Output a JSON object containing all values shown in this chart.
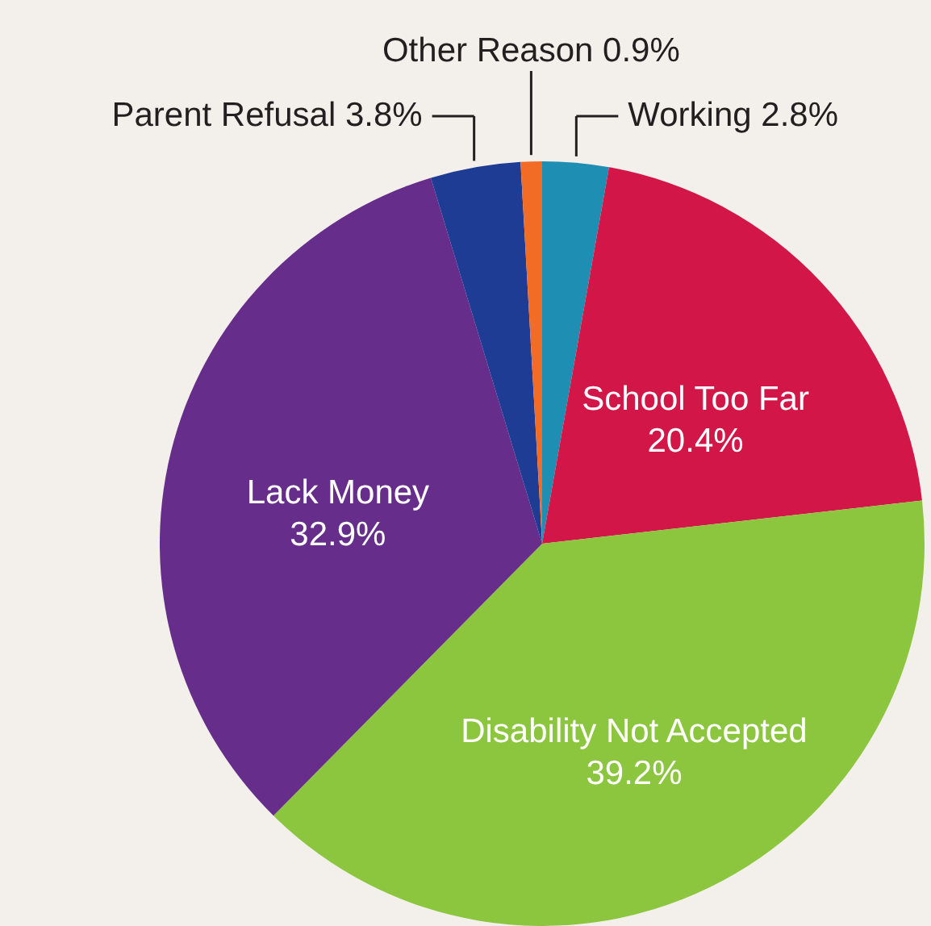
{
  "chart_data": {
    "type": "pie",
    "categories": [
      "Working",
      "School Too Far",
      "Disability Not Accepted",
      "Lack Money",
      "Parent Refusal",
      "Other Reason"
    ],
    "values": [
      2.8,
      20.4,
      39.2,
      32.9,
      3.8,
      0.9
    ],
    "value_labels": [
      "2.8%",
      "20.4%",
      "39.2%",
      "32.9%",
      "3.8%",
      "0.9%"
    ],
    "colors": [
      "#1f8eb3",
      "#d31648",
      "#8cc63f",
      "#662d8a",
      "#1f3c94",
      "#f36c25"
    ]
  }
}
